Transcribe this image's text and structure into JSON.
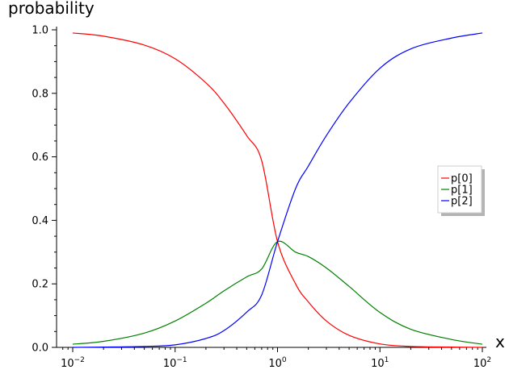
{
  "chart_data": {
    "type": "line",
    "title": "",
    "xlabel": "x",
    "ylabel": "probability",
    "xscale": "log",
    "xlim": [
      0.01,
      100
    ],
    "ylim": [
      0.0,
      1.0
    ],
    "grid": false,
    "legend_position": "right",
    "x_ticks": [
      {
        "value": 0.01,
        "base": "10",
        "exp": "−2"
      },
      {
        "value": 0.1,
        "base": "10",
        "exp": "−1"
      },
      {
        "value": 1,
        "base": "10",
        "exp": "0"
      },
      {
        "value": 10,
        "base": "10",
        "exp": "1"
      },
      {
        "value": 100,
        "base": "10",
        "exp": "2"
      }
    ],
    "y_ticks": [
      {
        "value": 0.0,
        "label": "0.0"
      },
      {
        "value": 0.2,
        "label": "0.2"
      },
      {
        "value": 0.4,
        "label": "0.4"
      },
      {
        "value": 0.6,
        "label": "0.6"
      },
      {
        "value": 0.8,
        "label": "0.8"
      },
      {
        "value": 1.0,
        "label": "1.0"
      }
    ],
    "x": [
      0.01,
      0.02,
      0.05,
      0.1,
      0.2,
      0.3,
      0.5,
      0.7,
      1,
      1.5,
      2,
      3,
      5,
      10,
      20,
      50,
      100
    ],
    "series": [
      {
        "name": "p[0]",
        "color": "#ff0000",
        "values": [
          0.99,
          0.98,
          0.952,
          0.909,
          0.833,
          0.769,
          0.667,
          0.588,
          0.333,
          0.2,
          0.143,
          0.083,
          0.038,
          0.011,
          0.003,
          0.001,
          0.0
        ]
      },
      {
        "name": "p[1]",
        "color": "#008000",
        "values": [
          0.01,
          0.019,
          0.045,
          0.083,
          0.139,
          0.178,
          0.222,
          0.247,
          0.333,
          0.3,
          0.286,
          0.25,
          0.192,
          0.11,
          0.057,
          0.025,
          0.01
        ]
      },
      {
        "name": "p[2]",
        "color": "#0000ff",
        "values": [
          0.0,
          0.001,
          0.003,
          0.008,
          0.028,
          0.053,
          0.111,
          0.165,
          0.333,
          0.5,
          0.571,
          0.667,
          0.77,
          0.879,
          0.94,
          0.974,
          0.99
        ]
      }
    ]
  }
}
